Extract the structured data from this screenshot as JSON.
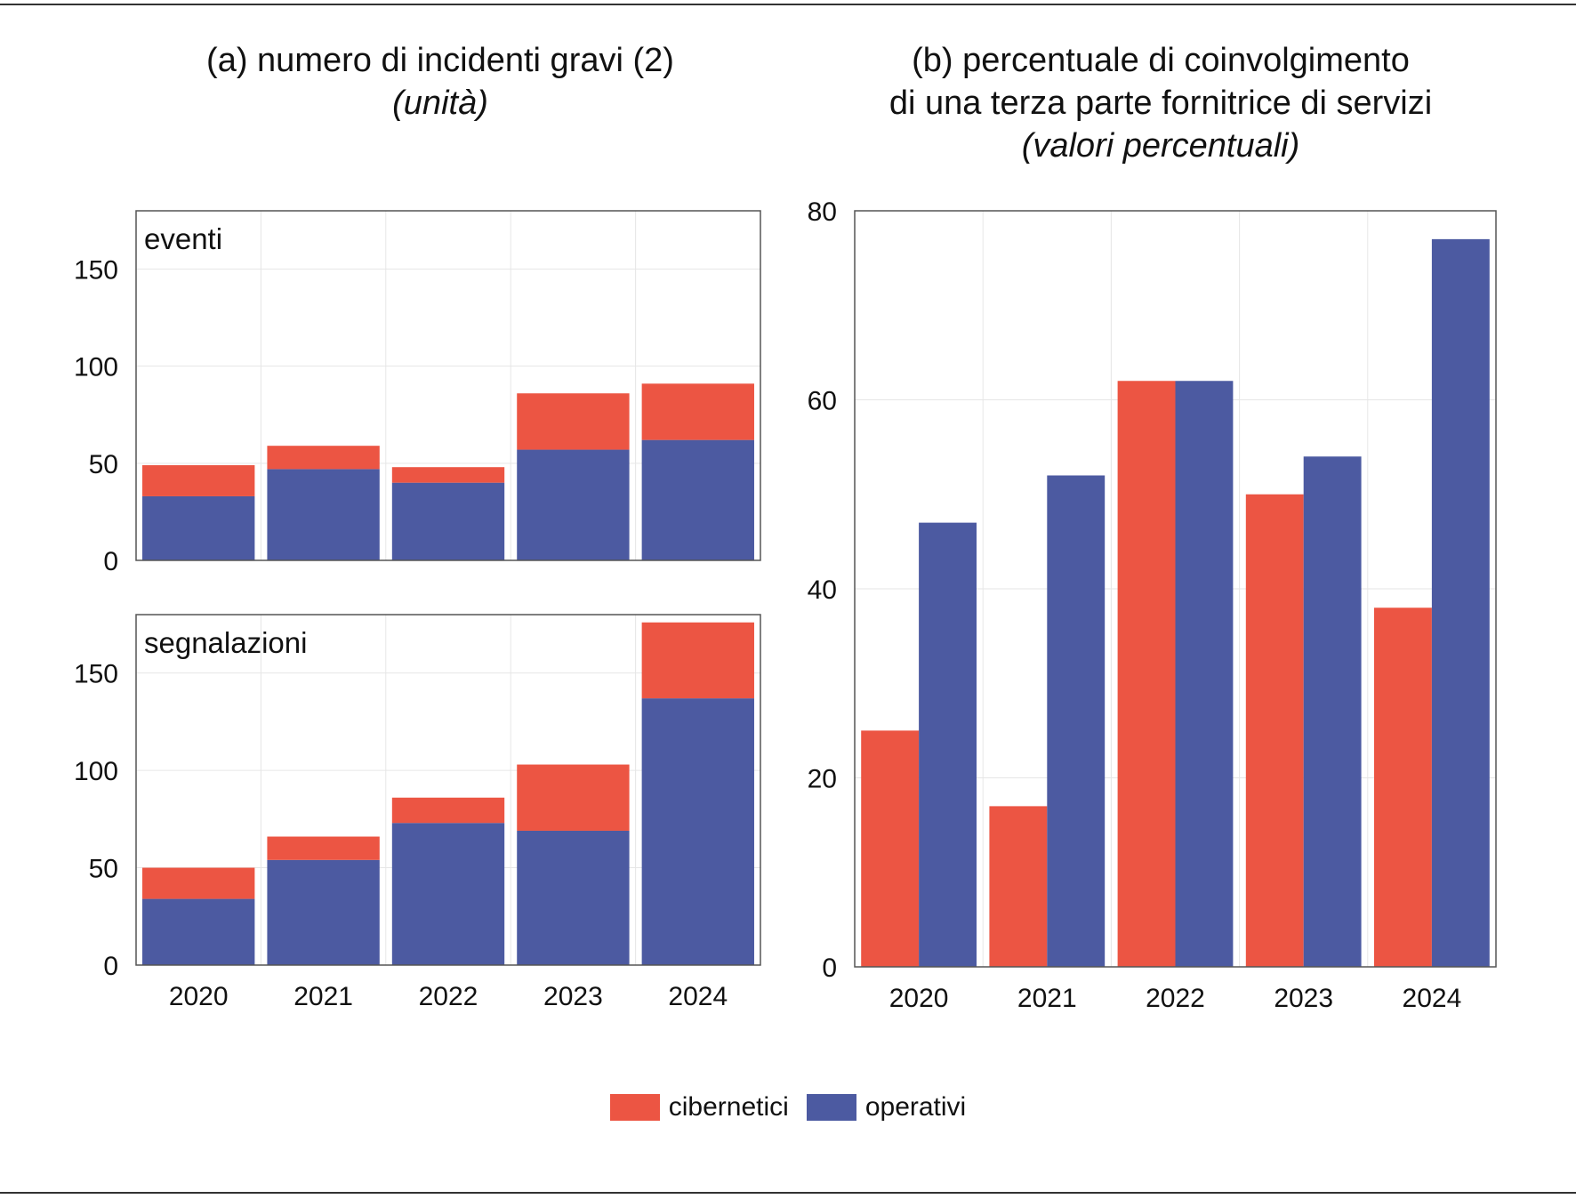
{
  "colors": {
    "cibernetici": "#ec5543",
    "operativi": "#4c5aa1",
    "grid": "#e6e6e6",
    "frame": "#555555"
  },
  "legend": [
    {
      "key": "cibernetici",
      "label": "cibernetici"
    },
    {
      "key": "operativi",
      "label": "operativi"
    }
  ],
  "panel_a": {
    "title": "(a) numero di incidenti gravi (2)",
    "subtitle": "(unità)"
  },
  "panel_b": {
    "title_line1": "(b) percentuale di coinvolgimento",
    "title_line2": "di una terza parte fornitrice di servizi",
    "subtitle": "(valori percentuali)"
  },
  "chart_data": [
    {
      "type": "bar",
      "stacked": true,
      "panel_label": "eventi",
      "categories": [
        "2020",
        "2021",
        "2022",
        "2023",
        "2024"
      ],
      "series": [
        {
          "name": "operativi",
          "values": [
            33,
            47,
            40,
            57,
            62
          ]
        },
        {
          "name": "cibernetici",
          "values": [
            16,
            12,
            8,
            29,
            29
          ]
        }
      ],
      "ylim": [
        0,
        180
      ],
      "yticks": [
        0,
        50,
        100,
        150
      ],
      "grid": true
    },
    {
      "type": "bar",
      "stacked": true,
      "panel_label": "segnalazioni",
      "categories": [
        "2020",
        "2021",
        "2022",
        "2023",
        "2024"
      ],
      "series": [
        {
          "name": "operativi",
          "values": [
            34,
            54,
            73,
            69,
            137
          ]
        },
        {
          "name": "cibernetici",
          "values": [
            16,
            12,
            13,
            34,
            39
          ]
        }
      ],
      "ylim": [
        0,
        180
      ],
      "yticks": [
        0,
        50,
        100,
        150
      ],
      "grid": true
    },
    {
      "type": "bar",
      "stacked": false,
      "categories": [
        "2020",
        "2021",
        "2022",
        "2023",
        "2024"
      ],
      "series": [
        {
          "name": "cibernetici",
          "values": [
            25,
            17,
            62,
            50,
            38
          ]
        },
        {
          "name": "operativi",
          "values": [
            47,
            52,
            62,
            54,
            77
          ]
        }
      ],
      "ylim": [
        0,
        80
      ],
      "yticks": [
        0,
        20,
        40,
        60,
        80
      ],
      "grid": true
    }
  ]
}
